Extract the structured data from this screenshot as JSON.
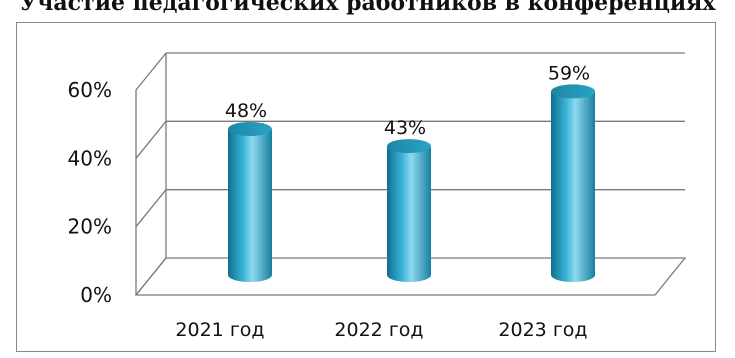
{
  "chart_data": {
    "type": "bar",
    "title": "Участие педагогических работников в конференциях",
    "categories": [
      "2021 год",
      "2022 год",
      "2023 год"
    ],
    "values": [
      48,
      43,
      59
    ],
    "data_labels": [
      "48%",
      "43%",
      "59%"
    ],
    "y_ticks": [
      "0%",
      "20%",
      "40%",
      "60%"
    ],
    "ylim": [
      0,
      60
    ],
    "grid": true,
    "style": "3d-cylinder",
    "colors": {
      "bar": "#2aa3c6",
      "bar_dark": "#0f6f8f",
      "bar_light": "#8fd9ef",
      "grid": "#7a7a7a"
    }
  }
}
